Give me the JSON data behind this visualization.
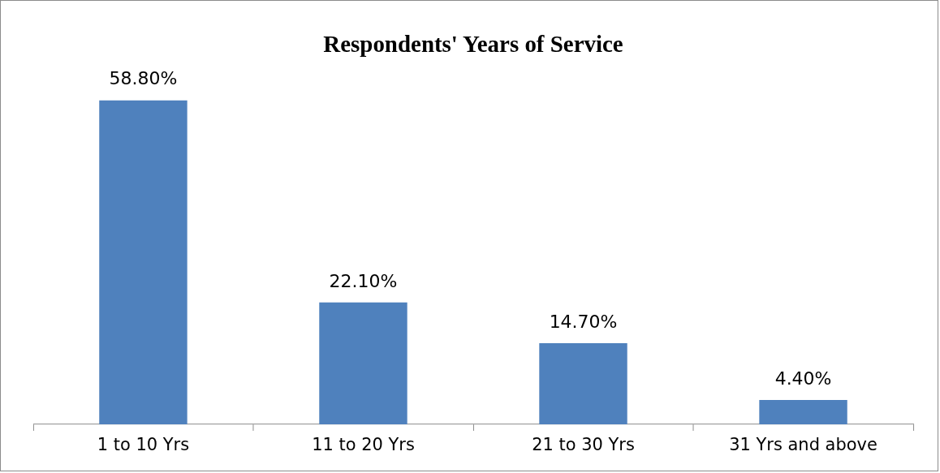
{
  "chart_data": {
    "type": "bar",
    "title": "Respondents' Years of Service",
    "categories": [
      "1 to 10 Yrs",
      "11 to 20 Yrs",
      "21 to 30 Yrs",
      "31 Yrs and above"
    ],
    "values": [
      58.8,
      22.1,
      14.7,
      4.4
    ],
    "value_labels": [
      "58.80%",
      "22.10%",
      "14.70%",
      "4.40%"
    ],
    "color": "#4f81bd",
    "grid": false,
    "legend": false
  }
}
